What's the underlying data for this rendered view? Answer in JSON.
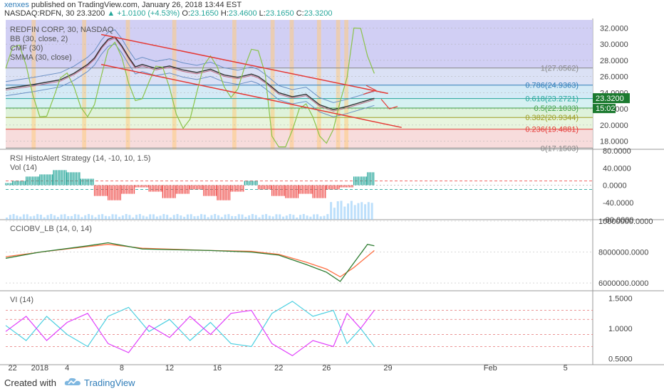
{
  "header": {
    "user": "xenxes",
    "published_text": "published on TradingView.com, January 26, 2018 13:44 EST",
    "symbol": "NASDAQ:RDFN, 30",
    "price": "23.3200",
    "change": "▲ +1.0100 (+4.53%)",
    "ohlc": [
      {
        "label": "O:",
        "value": "23.1650"
      },
      {
        "label": "H:",
        "value": "23.4600"
      },
      {
        "label": "L:",
        "value": "23.1650"
      },
      {
        "label": "C:",
        "value": "23.3200"
      }
    ]
  },
  "footer": {
    "created_with": "Created with",
    "brand": "TradingView"
  },
  "colors": {
    "up": "#26a69a",
    "down": "#ef5350",
    "trendline": "#e53935",
    "pink": "#e040fb",
    "cyan": "#4dd0e1",
    "green_osc": "#8bc34a",
    "price_tag": "#1b7a2f"
  },
  "chart_data": [
    {
      "type": "line",
      "title": "REDFIN CORP, 30, NASDAQ",
      "indicator_labels": [
        "BB (30, close, 2)",
        "CMF (30)",
        "SMMA (30, close)"
      ],
      "ylim": [
        17,
        33
      ],
      "y_ticks": [
        "32.0000",
        "30.0000",
        "28.0000",
        "26.0000",
        "24.0000",
        "22.0000",
        "20.0000",
        "18.0000"
      ],
      "last_price_tag": "23.3200",
      "countdown_tag": "15:02",
      "fib_levels": [
        {
          "label": "1(27.0562)",
          "value": 27.0562
        },
        {
          "label": "0.786(24.9363)",
          "value": 24.9363
        },
        {
          "label": "0.618(23.2721)",
          "value": 23.2721
        },
        {
          "label": "0.5(22.1033)",
          "value": 22.1033
        },
        {
          "label": "0.382(20.9344)",
          "value": 20.9344
        },
        {
          "label": "0.236(19.4881)",
          "value": 19.4881
        },
        {
          "label": "0(17.1503)",
          "value": 17.1503
        }
      ],
      "price_series": [
        [
          0,
          24.5
        ],
        [
          4,
          25.0
        ],
        [
          8,
          25.6
        ],
        [
          10,
          26.4
        ],
        [
          12,
          27.5
        ],
        [
          13,
          28.3
        ],
        [
          14,
          29.6
        ],
        [
          15,
          30.6
        ],
        [
          16,
          30.9
        ],
        [
          17,
          29.8
        ],
        [
          18,
          28.4
        ],
        [
          19,
          27.2
        ],
        [
          20,
          27.5
        ],
        [
          22,
          27.0
        ],
        [
          24,
          27.3
        ],
        [
          26,
          26.8
        ],
        [
          28,
          26.5
        ],
        [
          30,
          26.9
        ],
        [
          32,
          26.2
        ],
        [
          34,
          25.9
        ],
        [
          36,
          26.3
        ],
        [
          37,
          26.0
        ],
        [
          38,
          25.4
        ],
        [
          40,
          24.0
        ],
        [
          42,
          23.5
        ],
        [
          44,
          23.8
        ],
        [
          46,
          22.5
        ],
        [
          48,
          21.9
        ],
        [
          50,
          22.3
        ],
        [
          52,
          22.8
        ],
        [
          54,
          23.3
        ]
      ],
      "channel_upper": [
        [
          14,
          31.2
        ],
        [
          56,
          23.9
        ]
      ],
      "channel_lower": [
        [
          14,
          27.5
        ],
        [
          58,
          19.7
        ]
      ]
    },
    {
      "type": "bar",
      "title": "RSI HistoAlert Strategy (14, -10, 10, 1.5)",
      "subtitle": "Vol (14)",
      "ylim": [
        -80,
        80
      ],
      "y_ticks": [
        "80.0000",
        "40.0000",
        "0.0000",
        "-40.0000",
        "-80.0000"
      ],
      "segments": [
        {
          "from": 0,
          "to": 1,
          "value": 5
        },
        {
          "from": 1,
          "to": 3,
          "value": 10
        },
        {
          "from": 3,
          "to": 5,
          "value": 20
        },
        {
          "from": 5,
          "to": 7,
          "value": 25
        },
        {
          "from": 7,
          "to": 9,
          "value": 35
        },
        {
          "from": 9,
          "to": 11,
          "value": 30
        },
        {
          "from": 11,
          "to": 13,
          "value": 15
        },
        {
          "from": 13,
          "to": 15,
          "value": -25
        },
        {
          "from": 15,
          "to": 17,
          "value": -35
        },
        {
          "from": 17,
          "to": 19,
          "value": -20
        },
        {
          "from": 19,
          "to": 21,
          "value": -5
        },
        {
          "from": 21,
          "to": 23,
          "value": -15
        },
        {
          "from": 23,
          "to": 25,
          "value": -30
        },
        {
          "from": 25,
          "to": 27,
          "value": -20
        },
        {
          "from": 27,
          "to": 29,
          "value": -10
        },
        {
          "from": 29,
          "to": 31,
          "value": -25
        },
        {
          "from": 31,
          "to": 33,
          "value": -35
        },
        {
          "from": 33,
          "to": 35,
          "value": -15
        },
        {
          "from": 35,
          "to": 37,
          "value": 10
        },
        {
          "from": 37,
          "to": 39,
          "value": -10
        },
        {
          "from": 39,
          "to": 41,
          "value": -25
        },
        {
          "from": 41,
          "to": 43,
          "value": -30
        },
        {
          "from": 43,
          "to": 45,
          "value": -20
        },
        {
          "from": 45,
          "to": 47,
          "value": -30
        },
        {
          "from": 47,
          "to": 49,
          "value": -10
        },
        {
          "from": 49,
          "to": 51,
          "value": -5
        },
        {
          "from": 51,
          "to": 53,
          "value": 20
        },
        {
          "from": 53,
          "to": 54,
          "value": 30
        }
      ]
    },
    {
      "type": "line",
      "title": "CCIOBV_LB (14, 0, 14)",
      "ylim": [
        5500000,
        10000000
      ],
      "y_ticks": [
        "10000000.0000",
        "8000000.0000",
        "6000000.0000"
      ],
      "series": [
        {
          "values": [
            [
              0,
              7600000
            ],
            [
              5,
              8000000
            ],
            [
              12,
              8400000
            ],
            [
              15,
              8600000
            ],
            [
              20,
              8200000
            ],
            [
              30,
              8100000
            ],
            [
              36,
              8000000
            ],
            [
              40,
              7800000
            ],
            [
              44,
              7200000
            ],
            [
              47,
              6700000
            ],
            [
              49,
              6100000
            ],
            [
              51,
              7300000
            ],
            [
              53,
              8500000
            ],
            [
              54,
              8400000
            ]
          ]
        },
        {
          "values": [
            [
              0,
              7700000
            ],
            [
              6,
              8050000
            ],
            [
              12,
              8350000
            ],
            [
              15,
              8500000
            ],
            [
              20,
              8250000
            ],
            [
              30,
              8100000
            ],
            [
              36,
              8050000
            ],
            [
              40,
              7850000
            ],
            [
              44,
              7350000
            ],
            [
              47,
              6900000
            ],
            [
              49,
              6400000
            ],
            [
              51,
              7000000
            ],
            [
              54,
              8100000
            ]
          ]
        }
      ]
    },
    {
      "type": "line",
      "title": "VI (14)",
      "ylim": [
        0.4,
        1.6
      ],
      "y_ticks": [
        "1.5000",
        "1.0000",
        "0.5000"
      ],
      "series": [
        {
          "values": [
            [
              0,
              0.95
            ],
            [
              3,
              1.2
            ],
            [
              6,
              0.8
            ],
            [
              9,
              1.1
            ],
            [
              12,
              1.25
            ],
            [
              15,
              0.75
            ],
            [
              18,
              0.6
            ],
            [
              21,
              1.05
            ],
            [
              24,
              0.85
            ],
            [
              27,
              1.2
            ],
            [
              30,
              0.9
            ],
            [
              33,
              1.25
            ],
            [
              36,
              1.3
            ],
            [
              39,
              0.75
            ],
            [
              42,
              0.55
            ],
            [
              45,
              0.8
            ],
            [
              48,
              0.7
            ],
            [
              50,
              1.25
            ],
            [
              52,
              1.0
            ],
            [
              54,
              1.3
            ]
          ]
        },
        {
          "values": [
            [
              0,
              1.05
            ],
            [
              3,
              0.8
            ],
            [
              6,
              1.2
            ],
            [
              9,
              0.9
            ],
            [
              12,
              0.7
            ],
            [
              15,
              1.2
            ],
            [
              18,
              1.35
            ],
            [
              21,
              0.95
            ],
            [
              24,
              1.15
            ],
            [
              27,
              0.8
            ],
            [
              30,
              1.1
            ],
            [
              33,
              0.75
            ],
            [
              36,
              0.7
            ],
            [
              39,
              1.25
            ],
            [
              42,
              1.45
            ],
            [
              45,
              1.2
            ],
            [
              48,
              1.3
            ],
            [
              50,
              0.75
            ],
            [
              52,
              1.0
            ],
            [
              54,
              0.7
            ]
          ]
        }
      ]
    }
  ],
  "x_axis": {
    "ticks": [
      {
        "label": "22",
        "x": 1
      },
      {
        "label": "2018",
        "x": 5
      },
      {
        "label": "4",
        "x": 9
      },
      {
        "label": "8",
        "x": 17
      },
      {
        "label": "12",
        "x": 24
      },
      {
        "label": "16",
        "x": 31
      },
      {
        "label": "22",
        "x": 40
      },
      {
        "label": "26",
        "x": 47
      },
      {
        "label": "29",
        "x": 56
      },
      {
        "label": "Feb",
        "x": 71
      },
      {
        "label": "5",
        "x": 82
      }
    ],
    "xlim": [
      0,
      86
    ]
  }
}
